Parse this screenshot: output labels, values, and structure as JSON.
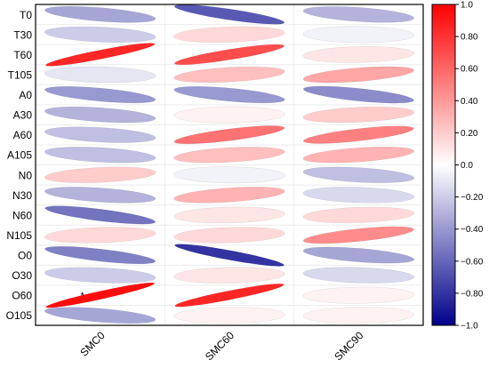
{
  "chart_data": {
    "type": "heatmap",
    "rows": [
      "T0",
      "T30",
      "T60",
      "T105",
      "A0",
      "A30",
      "A60",
      "A105",
      "N0",
      "N30",
      "N60",
      "N105",
      "O0",
      "O30",
      "O60",
      "O105"
    ],
    "columns": [
      "SMC0",
      "SMC60",
      "SMC90"
    ],
    "values": [
      [
        -0.35,
        -0.65,
        -0.3
      ],
      [
        -0.2,
        0.15,
        -0.05
      ],
      [
        0.85,
        0.7,
        0.1
      ],
      [
        -0.1,
        0.25,
        0.35
      ],
      [
        -0.4,
        -0.4,
        -0.45
      ],
      [
        -0.3,
        0.05,
        0.2
      ],
      [
        -0.25,
        0.55,
        0.5
      ],
      [
        -0.25,
        0.25,
        0.3
      ],
      [
        0.2,
        -0.05,
        -0.25
      ],
      [
        -0.3,
        0.3,
        -0.15
      ],
      [
        -0.55,
        0.1,
        0.15
      ],
      [
        0.15,
        0.15,
        0.45
      ],
      [
        -0.5,
        -0.8,
        -0.35
      ],
      [
        -0.2,
        0.1,
        -0.15
      ],
      [
        0.95,
        0.85,
        0.05
      ],
      [
        -0.35,
        0.05,
        0.05
      ]
    ],
    "colorbar": {
      "range": [
        -1.0,
        1.0
      ],
      "ticks": [
        "1.0",
        "0.80",
        "0.60",
        "0.40",
        "0.20",
        "0.0",
        "−0.20",
        "−0.40",
        "−0.60",
        "−0.80",
        "−1.0"
      ],
      "low_color": "#00008b",
      "mid_color": "#ffffff",
      "high_color": "#ff0000"
    },
    "grid": true,
    "significance_markers": [
      {
        "row": "O60",
        "column": "SMC0",
        "symbol": "*"
      }
    ]
  }
}
